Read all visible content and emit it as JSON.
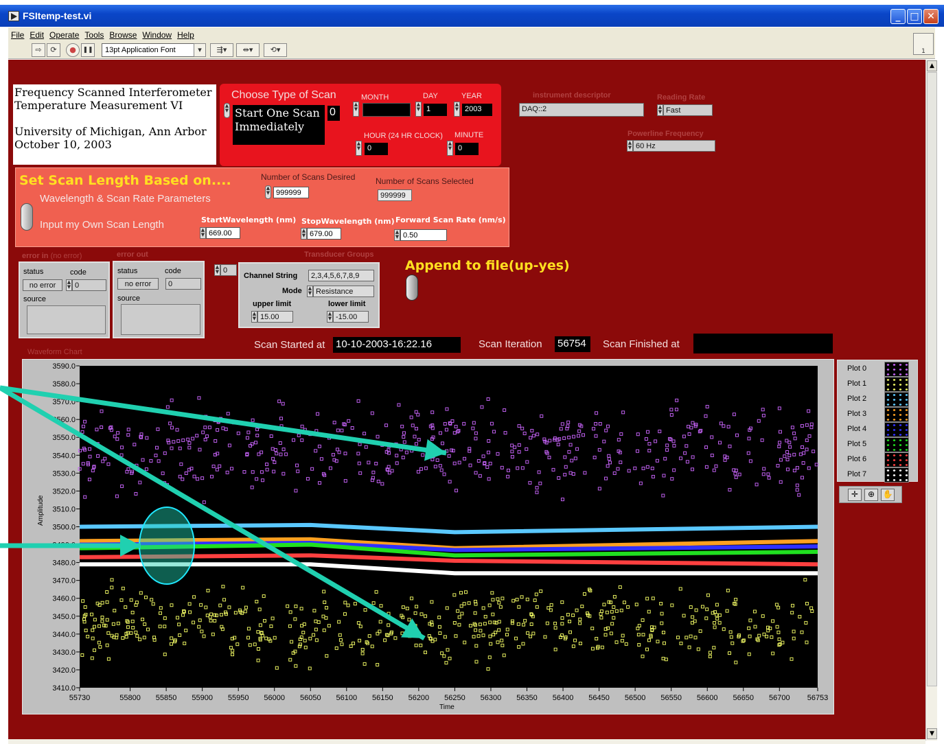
{
  "window": {
    "title": "FSItemp-test.vi",
    "min_label": "_",
    "max_label": "□",
    "close_label": "✕"
  },
  "menu": [
    "File",
    "Edit",
    "Operate",
    "Tools",
    "Browse",
    "Window",
    "Help"
  ],
  "toolbar": {
    "font_label": "13pt Application Font",
    "run": "⇨",
    "run_cont": "⟳",
    "abort": "●",
    "pause": "❚❚",
    "align": "⇶▾",
    "distribute": "⇹▾",
    "reorder": "⟲▾",
    "vi_icon_label": "1"
  },
  "header_text": {
    "line1": "Frequency Scanned Interferometer",
    "line2": "Temperature Measurement VI",
    "line3": "University of Michigan, Ann Arbor",
    "line4": "October 10, 2003"
  },
  "scan_type": {
    "title": "Choose Type of Scan",
    "value_line1": "Start One Scan",
    "value_line2": "Immediately",
    "index": "0",
    "month_label": "MONTH",
    "month_value": "",
    "day_label": "DAY",
    "day_value": "1",
    "year_label": "YEAR",
    "year_value": "2003",
    "hour_label": "HOUR (24 HR CLOCK)",
    "hour_value": "0",
    "minute_label": "MINUTE",
    "minute_value": "0"
  },
  "instrument": {
    "descriptor_label": "instrument descriptor",
    "descriptor_value": "DAQ::2",
    "rate_label": "Reading Rate",
    "rate_value": "Fast",
    "powerline_label": "Powerline Frequency",
    "powerline_value": "60 Hz"
  },
  "scan_length": {
    "title": "Set Scan Length Based on....",
    "opt1": "Wavelength & Scan Rate Parameters",
    "opt2": "Input my Own Scan Length",
    "desired_label": "Number of Scans Desired",
    "desired_value": "999999",
    "selected_label": "Number of Scans Selected",
    "selected_value": "999999",
    "start_label": "StartWavelength (nm)",
    "start_value": "669.00",
    "stop_label": "StopWavelength (nm)",
    "stop_value": "679.00",
    "rate_label": "Forward Scan Rate (nm/s)",
    "rate_value": "0.50"
  },
  "error_in": {
    "title": "error in",
    "title_note": "(no error)",
    "status_label": "status",
    "code_label": "code",
    "status_value": "no error",
    "code_value": "0",
    "source_label": "source"
  },
  "error_out": {
    "title": "error out",
    "status_label": "status",
    "code_label": "code",
    "status_value": "no error",
    "code_value": "0",
    "source_label": "source"
  },
  "transducer": {
    "index": "0",
    "title": "Transducer Groups",
    "channel_label": "Channel String",
    "channel_value": "2,3,4,5,6,7,8,9",
    "mode_label": "Mode",
    "mode_value": "Resistance",
    "upper_label": "upper limit",
    "upper_value": "15.00",
    "lower_label": "lower limit",
    "lower_value": "-15.00"
  },
  "append": {
    "label": "Append to file(up-yes)"
  },
  "scan_status": {
    "started_label": "Scan Started at",
    "started_value": "10-10-2003-16:22.16",
    "iteration_label": "Scan Iteration",
    "iteration_value": "56754",
    "finished_label": "Scan Finished at",
    "finished_value": ""
  },
  "colors": {
    "panel": "#8b0a0a",
    "scan_box": "#e8141e",
    "length_box": "#f06050",
    "purple": "#c060f0",
    "yellow": "#e8f060",
    "cyan": "#5ac8ff",
    "orange": "#ffa020",
    "green": "#20e020",
    "red": "#ff4040",
    "white": "#ffffff",
    "arrow": "#20d0b0"
  },
  "chart_data": {
    "type": "scatter",
    "title": "Waveform Chart",
    "xlabel": "Time",
    "ylabel": "Amplitude",
    "xlim": [
      55730,
      56753
    ],
    "ylim": [
      3410,
      3590
    ],
    "x_ticks": [
      "55730",
      "55800",
      "55850",
      "55900",
      "55950",
      "56000",
      "56050",
      "56100",
      "56150",
      "56200",
      "56250",
      "56300",
      "56350",
      "56400",
      "56450",
      "56500",
      "56550",
      "56600",
      "56650",
      "56700",
      "56753"
    ],
    "y_ticks": [
      "3590.0",
      "3580.0",
      "3570.0",
      "3560.0",
      "3550.0",
      "3540.0",
      "3530.0",
      "3520.0",
      "3510.0",
      "3500.0",
      "3490.0",
      "3480.0",
      "3470.0",
      "3460.0",
      "3450.0",
      "3440.0",
      "3430.0",
      "3420.0",
      "3410.0"
    ],
    "series": [
      {
        "name": "Plot 0",
        "color": "#c060f0",
        "style": "points",
        "band": [
          3515,
          3575
        ]
      },
      {
        "name": "Plot 1",
        "color": "#e8f060",
        "style": "points",
        "band": [
          3420,
          3470
        ]
      },
      {
        "name": "Plot 2",
        "color": "#5ac8ff",
        "style": "line",
        "x": [
          55730,
          56050,
          56250,
          56753
        ],
        "values": [
          3500,
          3501,
          3497,
          3500
        ]
      },
      {
        "name": "Plot 3",
        "color": "#ffa020",
        "style": "line",
        "x": [
          55730,
          56050,
          56250,
          56753
        ],
        "values": [
          3492,
          3493,
          3488,
          3492
        ]
      },
      {
        "name": "Plot 4",
        "color": "#3030ff",
        "style": "line",
        "x": [
          55730,
          56050,
          56250,
          56753
        ],
        "values": [
          3490,
          3491,
          3487,
          3489
        ]
      },
      {
        "name": "Plot 5",
        "color": "#20e020",
        "style": "line",
        "x": [
          55730,
          56050,
          56250,
          56753
        ],
        "values": [
          3488,
          3490,
          3484,
          3486
        ]
      },
      {
        "name": "Plot 6",
        "color": "#ff4040",
        "style": "line",
        "x": [
          55730,
          56050,
          56250,
          56753
        ],
        "values": [
          3483,
          3484,
          3481,
          3479
        ]
      },
      {
        "name": "Plot 7",
        "color": "#ffffff",
        "style": "line",
        "x": [
          55730,
          56050,
          56250,
          56753
        ],
        "values": [
          3479,
          3479,
          3474,
          3474
        ]
      }
    ]
  }
}
